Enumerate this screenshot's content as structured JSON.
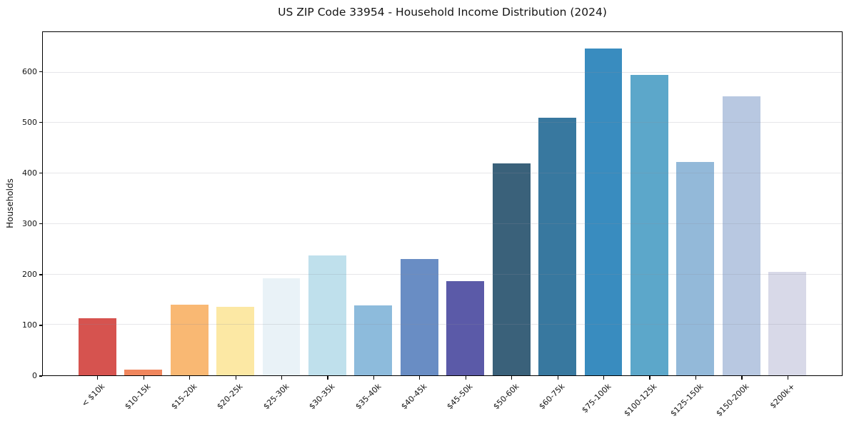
{
  "chart_data": {
    "type": "bar",
    "title": "US ZIP Code 33954 - Household Income Distribution (2024)",
    "xlabel": "",
    "ylabel": "Households",
    "categories": [
      "< $10k",
      "$10-15k",
      "$15-20k",
      "$20-25k",
      "$25-30k",
      "$30-35k",
      "$35-40k",
      "$40-45k",
      "$45-50k",
      "$50-60k",
      "$60-75k",
      "$75-100k",
      "$100-125k",
      "$125-150k",
      "$150-200k",
      "$200k+"
    ],
    "values": [
      113,
      12,
      140,
      136,
      192,
      237,
      138,
      231,
      186,
      420,
      510,
      648,
      595,
      423,
      553,
      205
    ],
    "bar_colors": [
      "#d6534f",
      "#f0865d",
      "#f9b873",
      "#fce8a4",
      "#e9f2f7",
      "#bfe0ec",
      "#8dbbdc",
      "#698dc4",
      "#5b5aa8",
      "#3a617a",
      "#38789f",
      "#398cbf",
      "#5ca7ca",
      "#93b9d9",
      "#b8c8e1",
      "#d8d9e8"
    ],
    "yticks": [
      0,
      100,
      200,
      300,
      400,
      500,
      600
    ],
    "ylim": [
      0,
      680
    ],
    "grid": "horizontal",
    "grid_color": "#e8e8ee",
    "frame_color": "#000000",
    "background": "#ffffff",
    "legend": "none",
    "x_tick_rotation_deg": 45
  }
}
